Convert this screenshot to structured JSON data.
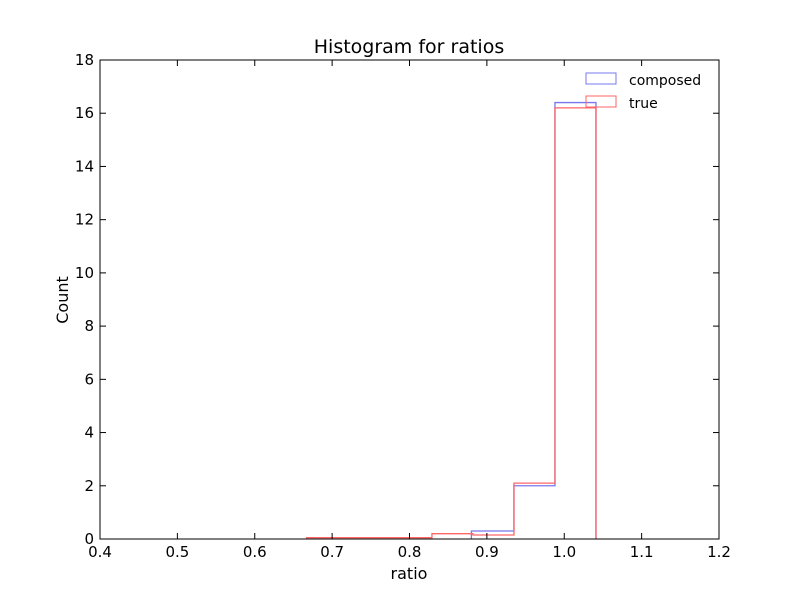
{
  "chart_data": {
    "type": "histogram",
    "title": "Histogram for ratios",
    "xlabel": "ratio",
    "ylabel": "Count",
    "xlim": [
      0.4,
      1.2
    ],
    "ylim": [
      0,
      18
    ],
    "xticks": [
      "0.4",
      "0.5",
      "0.6",
      "0.7",
      "0.8",
      "0.9",
      "1.0",
      "1.1",
      "1.2"
    ],
    "yticks": [
      "0",
      "2",
      "4",
      "6",
      "8",
      "10",
      "12",
      "14",
      "16",
      "18"
    ],
    "legend_position": "top-right",
    "grid": false,
    "series": [
      {
        "name": "composed",
        "color": "#7777ee",
        "bins": [
          {
            "x0": 0.88,
            "x1": 0.935,
            "count": 0.3
          },
          {
            "x0": 0.935,
            "x1": 0.988,
            "count": 2.0
          },
          {
            "x0": 0.988,
            "x1": 1.041,
            "count": 16.4
          }
        ]
      },
      {
        "name": "true",
        "color": "#ff6666",
        "bins": [
          {
            "x0": 0.667,
            "x1": 0.829,
            "count": 0.05
          },
          {
            "x0": 0.829,
            "x1": 0.882,
            "count": 0.2
          },
          {
            "x0": 0.882,
            "x1": 0.935,
            "count": 0.15
          },
          {
            "x0": 0.935,
            "x1": 0.988,
            "count": 2.1
          },
          {
            "x0": 0.988,
            "x1": 1.041,
            "count": 16.2
          }
        ]
      }
    ]
  }
}
